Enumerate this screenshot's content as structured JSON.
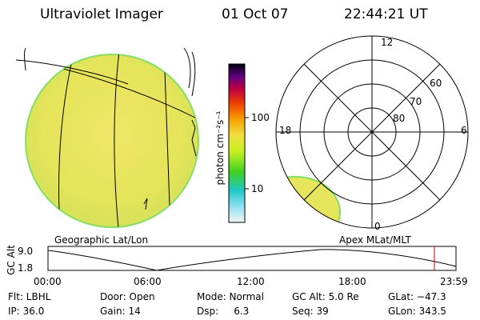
{
  "header": {
    "instrument": "Ultraviolet Imager",
    "date": "01 Oct 07",
    "time": "22:44:21 UT"
  },
  "colorbar": {
    "unit_label": "photon cm⁻²s⁻¹",
    "tick_100": "100",
    "tick_10": "10"
  },
  "geo_panel": {
    "label": "Geographic Lat/Lon"
  },
  "polar_panel": {
    "label": "Apex MLat/MLT",
    "mlt_12": "12",
    "mlt_18": "18",
    "mlt_6": "6",
    "mlt_0": "0",
    "lat_60": "60",
    "lat_70": "70",
    "lat_80": "80"
  },
  "altitude_plot": {
    "ylabel": "GC Alt",
    "y_top": "9.0",
    "y_bottom": "1.8",
    "x_ticks": [
      "00:00",
      "06:00",
      "12:00",
      "18:00",
      "23:59"
    ],
    "current_time_marker_fraction": 0.947
  },
  "status": {
    "flt": "Flt: LBHL",
    "ip": "IP: 36.0",
    "door": "Door: Open",
    "gain": "Gain: 14",
    "mode": "Mode: Normal",
    "dsp": "Dsp:     6.3",
    "gc_alt": "GC Alt: 5.0 Re",
    "seq": "Seq: 39",
    "glat": "GLat: −47.3",
    "glon": "GLon: 343.5"
  },
  "colors": {
    "image_fill": "#e8e85a",
    "image_edge": "#8ee060",
    "marker": "#cc0000"
  }
}
